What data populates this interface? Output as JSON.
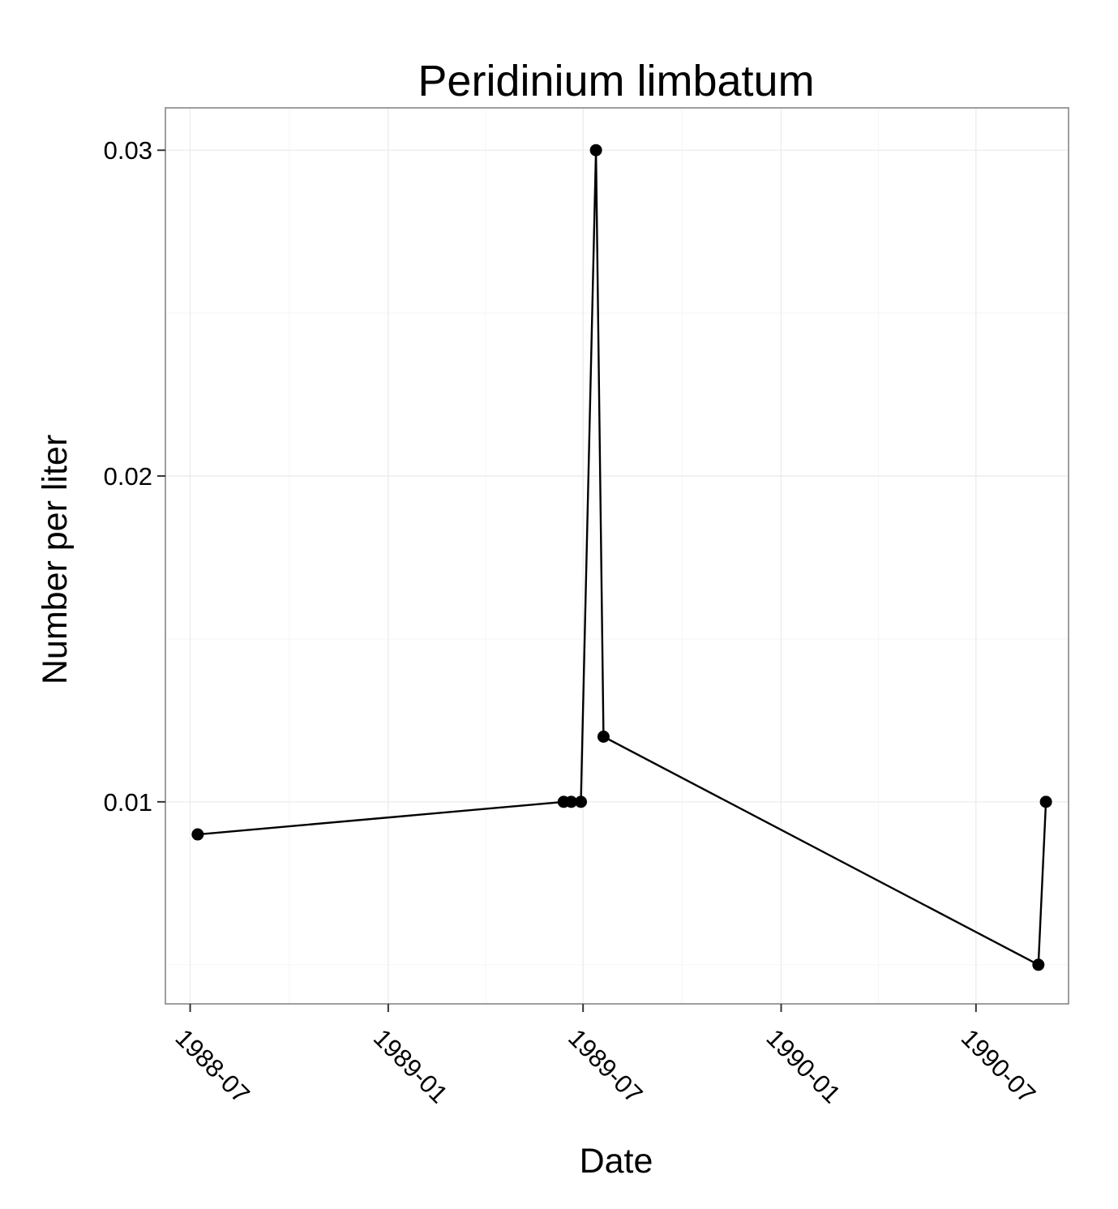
{
  "chart_data": {
    "type": "line",
    "title": "Peridinium limbatum",
    "xlabel": "Date",
    "ylabel": "Number per liter",
    "x_ticks": [
      "1988-07",
      "1989-01",
      "1989-07",
      "1990-01",
      "1990-07"
    ],
    "y_ticks": [
      "0.01",
      "0.02",
      "0.03"
    ],
    "x_range": [
      "1988-06-08",
      "1990-09-25"
    ],
    "y_range": [
      0.0038,
      0.0313
    ],
    "grid": true,
    "legend": "none",
    "series": [
      {
        "points": [
          {
            "x": "1988-07-08",
            "y": 0.009
          },
          {
            "x": "1989-06-13",
            "y": 0.01
          },
          {
            "x": "1989-06-20",
            "y": 0.01
          },
          {
            "x": "1989-06-29",
            "y": 0.01
          },
          {
            "x": "1989-07-13",
            "y": 0.03
          },
          {
            "x": "1989-07-20",
            "y": 0.012
          },
          {
            "x": "1990-08-28",
            "y": 0.005
          },
          {
            "x": "1990-09-04",
            "y": 0.01
          }
        ]
      }
    ],
    "colors": {
      "line": "#000000",
      "point": "#000000",
      "panel_border": "#7f7f7f",
      "grid_major": "#ebebeb",
      "grid_minor": "#f5f5f5"
    }
  }
}
